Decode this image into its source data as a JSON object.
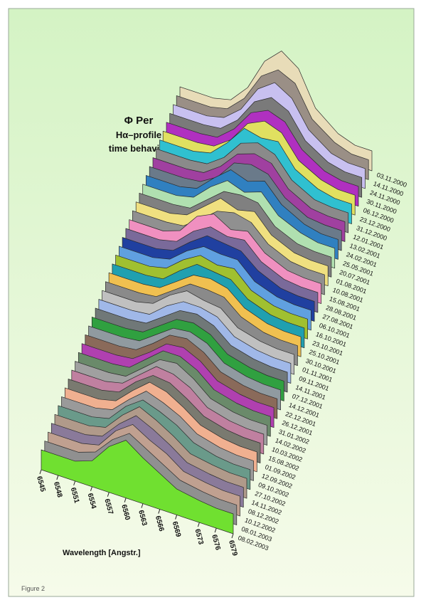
{
  "chart_data": {
    "type": "ribbon",
    "title": "Φ Per",
    "subtitle": [
      "Hα–profile",
      "time behavior"
    ],
    "x_label": "Wavelength [Angstr.]",
    "footer": "Figure 2",
    "x": [
      6545,
      6548,
      6551,
      6554,
      6557,
      6560,
      6563,
      6566,
      6569,
      6573,
      6576,
      6579
    ],
    "xlim": [
      6545,
      6579
    ],
    "xticks": [
      6545,
      6548,
      6551,
      6554,
      6557,
      6560,
      6563,
      6566,
      6569,
      6573,
      6576,
      6579
    ],
    "series": [
      {
        "name": "03.11.2000",
        "color": "#e8dcb8",
        "values": [
          1,
          1,
          1,
          1.2,
          2.1,
          3.7,
          4.5,
          3.9,
          2.2,
          1.3,
          1,
          1
        ]
      },
      {
        "name": "14.11.2000",
        "color": "#9a8f86",
        "values": [
          1,
          1,
          1,
          1.2,
          2.0,
          3.4,
          4.0,
          3.6,
          2.1,
          1.3,
          1,
          1
        ]
      },
      {
        "name": "24.11.2000",
        "color": "#c8c0f0",
        "values": [
          1,
          1,
          1,
          1.2,
          1.9,
          3.2,
          3.8,
          3.3,
          2.0,
          1.2,
          1,
          1
        ]
      },
      {
        "name": "30.11.2000",
        "color": "#7a7a7a",
        "values": [
          1,
          1,
          1,
          1.1,
          1.8,
          3.0,
          3.5,
          3.1,
          1.9,
          1.2,
          1,
          1
        ]
      },
      {
        "name": "06.12.2000",
        "color": "#b030c0",
        "values": [
          1,
          1,
          1,
          1.1,
          1.8,
          2.9,
          3.3,
          3.0,
          1.9,
          1.2,
          1,
          1
        ]
      },
      {
        "name": "23.12.2000",
        "color": "#e0e060",
        "values": [
          1,
          1,
          1,
          1.1,
          1.7,
          2.8,
          3.2,
          2.9,
          1.8,
          1.2,
          1,
          1
        ]
      },
      {
        "name": "31.12.2000",
        "color": "#30c0d0",
        "values": [
          1,
          1,
          1,
          1.2,
          2.0,
          3.0,
          2.8,
          2.9,
          1.8,
          1.2,
          1,
          1
        ]
      },
      {
        "name": "12.01.2001",
        "color": "#8a8a8a",
        "values": [
          1,
          1,
          1,
          1.1,
          1.7,
          2.7,
          3.0,
          2.7,
          1.7,
          1.1,
          1,
          1
        ]
      },
      {
        "name": "13.02.2001",
        "color": "#a040a0",
        "values": [
          1,
          1,
          1,
          1.1,
          1.7,
          2.6,
          2.9,
          2.7,
          1.7,
          1.1,
          1,
          1
        ]
      },
      {
        "name": "24.02.2001",
        "color": "#6a7a8a",
        "values": [
          1,
          1,
          1,
          1.1,
          1.6,
          2.6,
          2.8,
          2.6,
          1.7,
          1.1,
          1,
          1
        ]
      },
      {
        "name": "25.05.2001",
        "color": "#3080c0",
        "values": [
          1,
          1,
          1,
          1.2,
          2.0,
          2.7,
          2.4,
          2.7,
          1.8,
          1.2,
          1,
          1
        ]
      },
      {
        "name": "20.07.2001",
        "color": "#b0e0b0",
        "values": [
          1,
          1,
          1,
          1.2,
          2.0,
          2.6,
          2.3,
          2.6,
          1.7,
          1.2,
          1,
          1
        ]
      },
      {
        "name": "01.08.2001",
        "color": "#808080",
        "values": [
          1,
          1,
          1,
          1.1,
          1.8,
          2.5,
          2.6,
          2.5,
          1.6,
          1.1,
          1,
          1
        ]
      },
      {
        "name": "10.08.2001",
        "color": "#f0e080",
        "values": [
          1,
          1,
          1,
          1.2,
          1.9,
          2.6,
          2.3,
          2.5,
          1.6,
          1.1,
          1,
          1
        ]
      },
      {
        "name": "15.08.2001",
        "color": "#909090",
        "values": [
          1,
          1,
          1,
          1.1,
          1.7,
          2.4,
          2.6,
          2.4,
          1.6,
          1.1,
          1,
          1
        ]
      },
      {
        "name": "28.08.2001",
        "color": "#f090c0",
        "values": [
          1,
          1,
          1,
          1.3,
          2.3,
          2.7,
          2.2,
          2.4,
          1.6,
          1.1,
          1,
          1
        ]
      },
      {
        "name": "27.08.2001",
        "color": "#7a6a9a",
        "values": [
          1,
          1,
          1,
          1.2,
          2.0,
          2.5,
          2.3,
          2.4,
          1.6,
          1.1,
          1,
          1
        ]
      },
      {
        "name": "06.10.2001",
        "color": "#2040a0",
        "values": [
          1,
          1,
          1,
          1.2,
          1.9,
          2.5,
          2.4,
          2.3,
          1.6,
          1.1,
          1,
          1
        ]
      },
      {
        "name": "16.10.2001",
        "color": "#60a0e0",
        "values": [
          1,
          1,
          1,
          1.2,
          1.9,
          2.4,
          2.3,
          2.3,
          1.5,
          1.1,
          1,
          1
        ]
      },
      {
        "name": "23.10.2001",
        "color": "#a0c030",
        "values": [
          1,
          1,
          1,
          1.2,
          1.9,
          2.4,
          2.2,
          2.3,
          1.5,
          1.1,
          1,
          1
        ]
      },
      {
        "name": "25.10.2001",
        "color": "#20a0b0",
        "values": [
          1,
          1,
          1,
          1.1,
          1.8,
          2.4,
          2.3,
          2.2,
          1.5,
          1.1,
          1,
          1
        ]
      },
      {
        "name": "30.10.2001",
        "color": "#f0c050",
        "values": [
          1,
          1,
          1,
          1.1,
          1.7,
          2.3,
          2.4,
          2.2,
          1.5,
          1.1,
          1,
          1
        ]
      },
      {
        "name": "01.11.2001",
        "color": "#8a8a8a",
        "values": [
          1,
          1,
          1,
          1.1,
          1.7,
          2.3,
          2.3,
          2.2,
          1.5,
          1.1,
          1,
          1
        ]
      },
      {
        "name": "09.11.2001",
        "color": "#c0c0c0",
        "values": [
          1,
          1,
          1,
          1.2,
          1.9,
          2.4,
          2.2,
          2.1,
          1.4,
          1.1,
          1,
          1
        ]
      },
      {
        "name": "14.11.2001",
        "color": "#a0b8e8",
        "values": [
          1,
          1,
          1,
          1.1,
          1.8,
          2.3,
          2.3,
          2.1,
          1.4,
          1.1,
          1,
          1
        ]
      },
      {
        "name": "07.12.2001",
        "color": "#707878",
        "values": [
          1,
          1,
          1,
          1.1,
          1.7,
          2.3,
          2.4,
          2.1,
          1.4,
          1.1,
          1,
          1
        ]
      },
      {
        "name": "14.12.2001",
        "color": "#30a040",
        "values": [
          1,
          1,
          1,
          1.1,
          1.7,
          2.3,
          2.4,
          2.1,
          1.4,
          1.1,
          1,
          1
        ]
      },
      {
        "name": "22.12.2001",
        "color": "#909aa0",
        "values": [
          1,
          1,
          1,
          1.1,
          1.7,
          2.3,
          2.4,
          2.1,
          1.4,
          1.1,
          1,
          1
        ]
      },
      {
        "name": "26.12.2001",
        "color": "#8a6a5a",
        "values": [
          1,
          1,
          1,
          1.1,
          1.7,
          2.4,
          2.5,
          2.1,
          1.4,
          1.1,
          1,
          1
        ]
      },
      {
        "name": "31.01.2002",
        "color": "#b040b0",
        "values": [
          1,
          1,
          1,
          1.1,
          1.7,
          2.4,
          2.5,
          2.1,
          1.4,
          1.1,
          1,
          1
        ]
      },
      {
        "name": "14.02.2002",
        "color": "#6a8a6a",
        "values": [
          1,
          1,
          1,
          1.1,
          1.8,
          2.5,
          2.5,
          2.1,
          1.4,
          1.1,
          1,
          1
        ]
      },
      {
        "name": "10.03.2002",
        "color": "#a0a0a0",
        "values": [
          1,
          1,
          1,
          1.1,
          1.8,
          2.5,
          2.6,
          2.1,
          1.4,
          1.1,
          1,
          1
        ]
      },
      {
        "name": "15.08.2002",
        "color": "#c080a0",
        "values": [
          1,
          1,
          1,
          1.2,
          1.9,
          2.6,
          2.5,
          2.1,
          1.4,
          1.1,
          1,
          1
        ]
      },
      {
        "name": "01.09.2002",
        "color": "#7a7a70",
        "values": [
          1,
          1,
          1,
          1.2,
          2.0,
          2.6,
          2.5,
          2.0,
          1.4,
          1.1,
          1,
          1
        ]
      },
      {
        "name": "12.09.2002",
        "color": "#f0b090",
        "values": [
          1,
          1,
          1,
          1.2,
          2.0,
          2.7,
          2.5,
          2.0,
          1.4,
          1.1,
          1,
          1
        ]
      },
      {
        "name": "09.10.2002",
        "color": "#9a9a9a",
        "values": [
          1,
          1,
          1,
          1.2,
          2.0,
          2.7,
          2.4,
          2.0,
          1.4,
          1.1,
          1,
          1
        ]
      },
      {
        "name": "27.10.2002",
        "color": "#6a9a8a",
        "values": [
          1,
          1,
          1,
          1.2,
          2.1,
          2.7,
          2.4,
          2.0,
          1.4,
          1.1,
          1,
          1
        ]
      },
      {
        "name": "14.11.2002",
        "color": "#b09a8a",
        "values": [
          1,
          1,
          1,
          1.2,
          2.1,
          2.8,
          2.4,
          1.9,
          1.3,
          1.1,
          1,
          1
        ]
      },
      {
        "name": "08.12.2002",
        "color": "#8a7a9a",
        "values": [
          1,
          1,
          1,
          1.2,
          2.1,
          2.8,
          2.4,
          1.9,
          1.3,
          1.1,
          1,
          1
        ]
      },
      {
        "name": "10.12.2002",
        "color": "#c0a090",
        "values": [
          1,
          1,
          1,
          1.2,
          2.2,
          2.8,
          2.3,
          1.9,
          1.3,
          1.1,
          1,
          1
        ]
      },
      {
        "name": "08.01.2003",
        "color": "#909090",
        "values": [
          1,
          1,
          1,
          1.3,
          2.2,
          2.8,
          2.3,
          1.8,
          1.3,
          1.1,
          1,
          1
        ]
      },
      {
        "name": "08.02.2003",
        "color": "#70e030",
        "values": [
          1,
          1,
          1,
          1.3,
          2.3,
          2.9,
          2.3,
          1.8,
          1.3,
          1.1,
          1,
          1
        ]
      }
    ]
  }
}
